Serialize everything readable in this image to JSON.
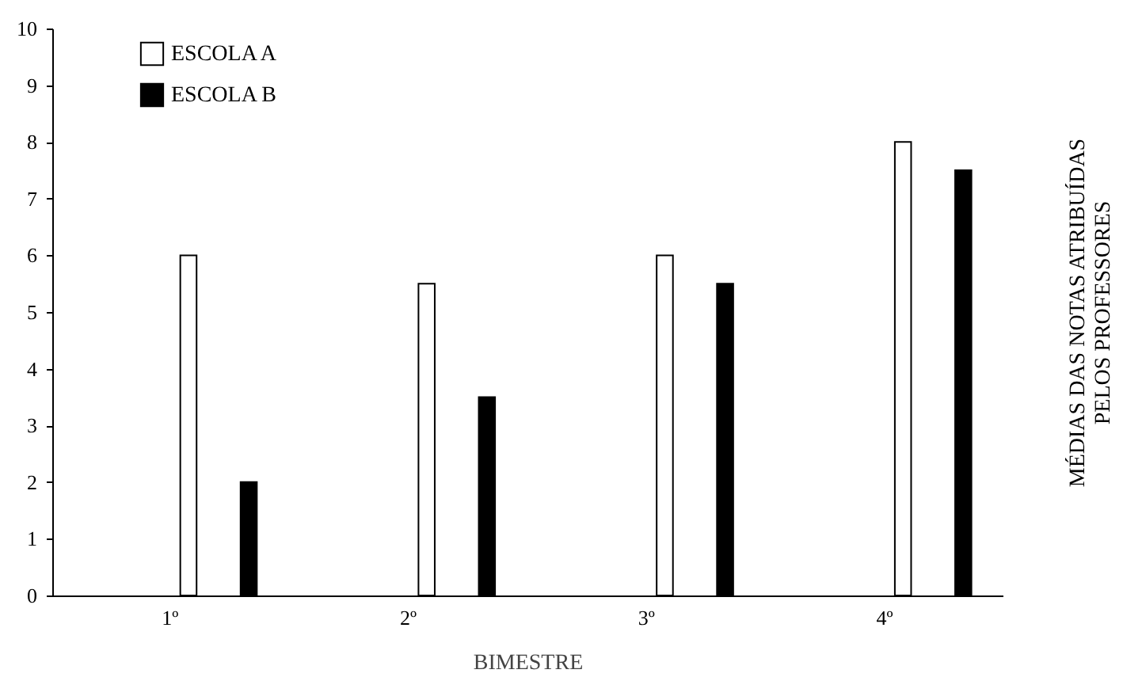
{
  "chart_data": {
    "type": "bar",
    "xlabel": "BIMESTRE",
    "ylabel": "MÉDIAS DAS NOTAS ATRIBUÍDAS\nPELOS PROFESSORES",
    "categories": [
      "1º",
      "2º",
      "3º",
      "4º"
    ],
    "series": [
      {
        "name": "ESCOLA A",
        "color": "#ffffff",
        "values": [
          6,
          5.5,
          6,
          8
        ]
      },
      {
        "name": "ESCOLA B",
        "color": "#000000",
        "values": [
          2,
          3.5,
          5.5,
          7.5
        ]
      }
    ],
    "ylim": [
      0,
      10
    ],
    "yticks": [
      0,
      1,
      2,
      3,
      4,
      5,
      6,
      7,
      8,
      9,
      10
    ],
    "grid": false,
    "legend": "top left"
  }
}
